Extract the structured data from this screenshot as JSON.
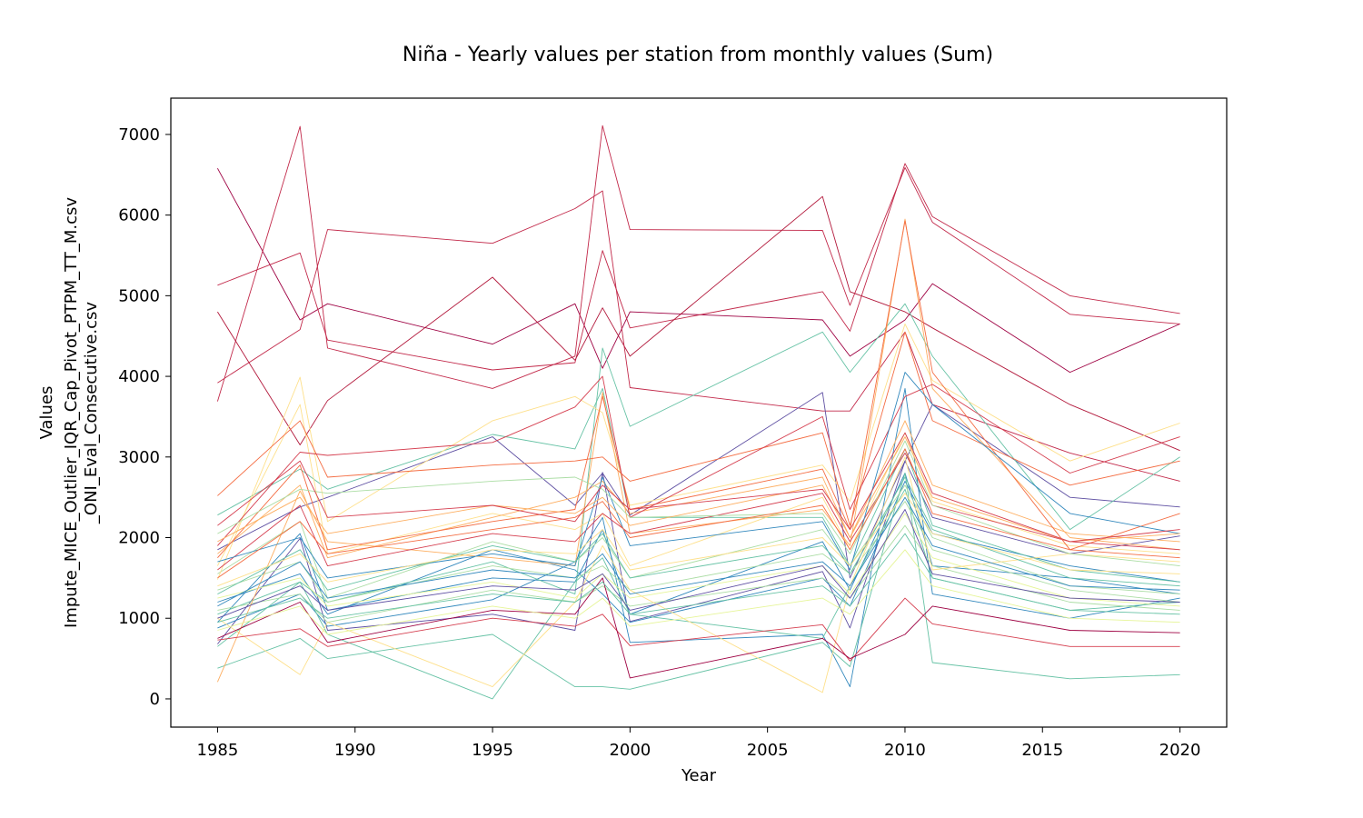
{
  "chart_data": {
    "type": "line",
    "title": "Niña - Yearly values per station from monthly values (Sum)",
    "xlabel": "Year",
    "ylabel_lines": [
      "Values",
      "Impute_MICE_Outlier_IQR_Cap_Pivot_PTPM_TT_M.csv",
      "_ONI_Eval_Consecutive.csv"
    ],
    "x": [
      1985,
      1988,
      1989,
      1995,
      1998,
      1999,
      2000,
      2007,
      2008,
      2010,
      2011,
      2016,
      2020
    ],
    "xlim": [
      1983.3,
      2021.7
    ],
    "ylim": [
      -350,
      7450
    ],
    "xticks": [
      1985,
      1990,
      1995,
      2000,
      2005,
      2010,
      2015,
      2020
    ],
    "yticks": [
      0,
      1000,
      2000,
      3000,
      4000,
      5000,
      6000,
      7000
    ],
    "grid": false,
    "legend": "none",
    "series": [
      {
        "color": "#9e0142",
        "values": [
          6580,
          4700,
          4900,
          4400,
          4900,
          4100,
          4800,
          4700,
          4250,
          4700,
          5150,
          4050,
          4650
        ]
      },
      {
        "color": "#c2294a",
        "values": [
          5130,
          5530,
          4450,
          4080,
          4170,
          5560,
          4600,
          5050,
          4560,
          6640,
          5980,
          5000,
          4780
        ]
      },
      {
        "color": "#c2294a",
        "values": [
          3690,
          7100,
          4350,
          3850,
          4250,
          7110,
          5820,
          5810,
          4880,
          6590,
          5910,
          4770,
          4650
        ]
      },
      {
        "color": "#b2183b",
        "values": [
          4800,
          3150,
          3700,
          5230,
          4200,
          4850,
          4250,
          6230,
          5050,
          4800,
          4600,
          3650,
          3080
        ]
      },
      {
        "color": "#c2294a",
        "values": [
          3920,
          4580,
          5820,
          5650,
          6080,
          6300,
          3860,
          3570,
          3570,
          4550,
          3650,
          3050,
          2700
        ]
      },
      {
        "color": "#5e4fa2",
        "values": [
          680,
          1990,
          850,
          1050,
          850,
          2810,
          960,
          1580,
          880,
          2950,
          2250,
          1800,
          2020
        ]
      },
      {
        "color": "#5e4fa2",
        "values": [
          1850,
          2380,
          2500,
          3250,
          2400,
          2800,
          2280,
          3800,
          1500,
          2950,
          3650,
          2500,
          2380
        ]
      },
      {
        "color": "#3288bd",
        "values": [
          1200,
          1550,
          1050,
          1850,
          1600,
          1300,
          950,
          1500,
          1150,
          2700,
          2050,
          1650,
          1450
        ]
      },
      {
        "color": "#3288bd",
        "values": [
          880,
          1300,
          900,
          1230,
          1700,
          2250,
          700,
          800,
          150,
          3850,
          1300,
          1000,
          1250
        ]
      },
      {
        "color": "#3288bd",
        "values": [
          950,
          2050,
          1100,
          1500,
          1450,
          2100,
          1050,
          1950,
          1350,
          2800,
          1650,
          1500,
          1300
        ]
      },
      {
        "color": "#66c2a5",
        "values": [
          1050,
          1450,
          1200,
          1700,
          1300,
          4350,
          3380,
          4550,
          4050,
          4900,
          4250,
          2100,
          3000
        ]
      },
      {
        "color": "#66c2a5",
        "values": [
          380,
          750,
          500,
          800,
          150,
          150,
          120,
          700,
          400,
          2800,
          450,
          250,
          300
        ]
      },
      {
        "color": "#66c2a5",
        "values": [
          2280,
          2850,
          2600,
          3280,
          3100,
          3850,
          2250,
          2250,
          1650,
          3100,
          2150,
          1600,
          1450
        ]
      },
      {
        "color": "#66c2a5",
        "values": [
          650,
          1450,
          800,
          0,
          1450,
          1750,
          1050,
          750,
          1400,
          2600,
          1500,
          1100,
          1200
        ]
      },
      {
        "color": "#abdda4",
        "values": [
          1350,
          1700,
          1200,
          1650,
          1500,
          1650,
          1350,
          1800,
          1550,
          2450,
          1850,
          1350,
          1200
        ]
      },
      {
        "color": "#abdda4",
        "values": [
          1550,
          2200,
          1250,
          1950,
          1700,
          2000,
          1500,
          2100,
          1650,
          2650,
          2000,
          1400,
          1300
        ]
      },
      {
        "color": "#abdda4",
        "values": [
          1100,
          1300,
          950,
          1350,
          1200,
          1400,
          1150,
          1500,
          1250,
          2150,
          1650,
          1200,
          1100
        ]
      },
      {
        "color": "#e6f598",
        "values": [
          1250,
          1500,
          1150,
          1450,
          1250,
          1550,
          1250,
          1650,
          1300,
          2300,
          1750,
          1250,
          1150
        ]
      },
      {
        "color": "#fee08b",
        "values": [
          1480,
          3990,
          2200,
          3450,
          3750,
          3550,
          2400,
          2900,
          2450,
          4650,
          3950,
          2950,
          3420
        ]
      },
      {
        "color": "#fee08b",
        "values": [
          1000,
          300,
          950,
          150,
          1200,
          1900,
          1350,
          80,
          1400,
          3000,
          1600,
          1800,
          1700
        ]
      },
      {
        "color": "#fee08b",
        "values": [
          1650,
          3650,
          1800,
          2300,
          2100,
          2300,
          1650,
          2500,
          1850,
          3300,
          2450,
          1900,
          1800
        ]
      },
      {
        "color": "#fdae61",
        "values": [
          210,
          2580,
          1950,
          1750,
          1650,
          3800,
          2050,
          2350,
          1900,
          5950,
          3850,
          2000,
          1850
        ]
      },
      {
        "color": "#fdae61",
        "values": [
          1800,
          2650,
          1750,
          2250,
          2500,
          2700,
          2300,
          2750,
          2000,
          3450,
          2650,
          2050,
          1950
        ]
      },
      {
        "color": "#f46d43",
        "values": [
          2520,
          3450,
          2750,
          2900,
          2950,
          3000,
          2700,
          3300,
          2150,
          4550,
          3450,
          2650,
          2950
        ]
      },
      {
        "color": "#f46d43",
        "values": [
          1750,
          2900,
          1850,
          2200,
          2350,
          3750,
          2350,
          2850,
          2100,
          5930,
          4050,
          1850,
          2300
        ]
      },
      {
        "color": "#d53e4f",
        "values": [
          1900,
          3060,
          3020,
          3180,
          3620,
          4000,
          2250,
          3500,
          2350,
          3750,
          3900,
          2800,
          3250
        ]
      },
      {
        "color": "#d53e4f",
        "values": [
          1600,
          2400,
          1650,
          2050,
          1950,
          2300,
          2050,
          2550,
          1950,
          3050,
          2400,
          1950,
          1850
        ]
      },
      {
        "color": "#d53e4f",
        "values": [
          730,
          870,
          650,
          1000,
          900,
          1050,
          660,
          920,
          470,
          1250,
          930,
          650,
          650
        ]
      },
      {
        "color": "#9e0142",
        "values": [
          750,
          1200,
          700,
          1100,
          1050,
          1500,
          260,
          750,
          500,
          800,
          1150,
          850,
          820
        ]
      },
      {
        "color": "#3288bd",
        "values": [
          1700,
          2000,
          1500,
          1800,
          1650,
          2750,
          1900,
          2200,
          1600,
          4050,
          3650,
          2300,
          2050
        ]
      },
      {
        "color": "#5e4fa2",
        "values": [
          1000,
          1400,
          1100,
          1400,
          1350,
          1550,
          1100,
          1650,
          1250,
          2350,
          1550,
          1250,
          1200
        ]
      },
      {
        "color": "#66c2a5",
        "values": [
          1300,
          1850,
          1350,
          1900,
          1700,
          2050,
          1500,
          1900,
          1550,
          2750,
          2100,
          1500,
          1400
        ]
      },
      {
        "color": "#abdda4",
        "values": [
          2050,
          2600,
          2550,
          2700,
          2750,
          2600,
          2250,
          2300,
          1800,
          3200,
          2400,
          1800,
          1650
        ]
      },
      {
        "color": "#fee08b",
        "values": [
          1400,
          1800,
          1450,
          1850,
          1800,
          2100,
          1600,
          2000,
          1650,
          2550,
          2050,
          1600,
          1550
        ]
      },
      {
        "color": "#fdae61",
        "values": [
          1950,
          2500,
          2050,
          2400,
          2300,
          2500,
          2150,
          2650,
          2000,
          3250,
          2500,
          1950,
          2050
        ]
      },
      {
        "color": "#f46d43",
        "values": [
          1500,
          2200,
          1800,
          2100,
          2250,
          2450,
          2000,
          2400,
          1850,
          3100,
          2300,
          1850,
          1750
        ]
      },
      {
        "color": "#e6f598",
        "values": [
          850,
          1150,
          800,
          1150,
          1000,
          1250,
          900,
          1250,
          1050,
          1850,
          1400,
          1000,
          950
        ]
      },
      {
        "color": "#3288bd",
        "values": [
          1150,
          1700,
          1250,
          1600,
          1500,
          1800,
          1300,
          1700,
          1400,
          2500,
          1900,
          1400,
          1350
        ]
      },
      {
        "color": "#66c2a5",
        "values": [
          950,
          1250,
          1000,
          1300,
          1200,
          1450,
          1050,
          1400,
          1150,
          2050,
          1500,
          1100,
          1050
        ]
      },
      {
        "color": "#d53e4f",
        "values": [
          2150,
          2950,
          2250,
          2400,
          2200,
          2650,
          2350,
          2600,
          2100,
          3300,
          2550,
          1950,
          2100
        ]
      }
    ]
  }
}
